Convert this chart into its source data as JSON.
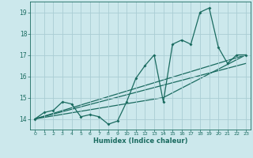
{
  "xlabel": "Humidex (Indice chaleur)",
  "bg_color": "#cce8ec",
  "grid_color": "#aacdd4",
  "line_color": "#1a6b60",
  "xlim": [
    -0.5,
    23.5
  ],
  "ylim": [
    13.5,
    19.5
  ],
  "yticks": [
    14,
    15,
    16,
    17,
    18,
    19
  ],
  "xticks": [
    0,
    1,
    2,
    3,
    4,
    5,
    6,
    7,
    8,
    9,
    10,
    11,
    12,
    13,
    14,
    15,
    16,
    17,
    18,
    19,
    20,
    21,
    22,
    23
  ],
  "series1_x": [
    0,
    1,
    2,
    3,
    4,
    5,
    6,
    7,
    8,
    9,
    10,
    11,
    12,
    13,
    14,
    15,
    16,
    17,
    18,
    19,
    20,
    21,
    22,
    23
  ],
  "series1_y": [
    14.0,
    14.3,
    14.4,
    14.8,
    14.7,
    14.1,
    14.2,
    14.1,
    13.75,
    13.9,
    14.8,
    15.9,
    16.5,
    17.0,
    14.8,
    17.5,
    17.7,
    17.5,
    19.0,
    19.2,
    17.35,
    16.6,
    17.0,
    17.0
  ],
  "trend1_x": [
    0,
    23
  ],
  "trend1_y": [
    14.0,
    16.6
  ],
  "trend2_x": [
    0,
    14,
    23
  ],
  "trend2_y": [
    14.0,
    15.0,
    17.0
  ],
  "trend3_x": [
    0,
    23
  ],
  "trend3_y": [
    14.0,
    17.0
  ]
}
